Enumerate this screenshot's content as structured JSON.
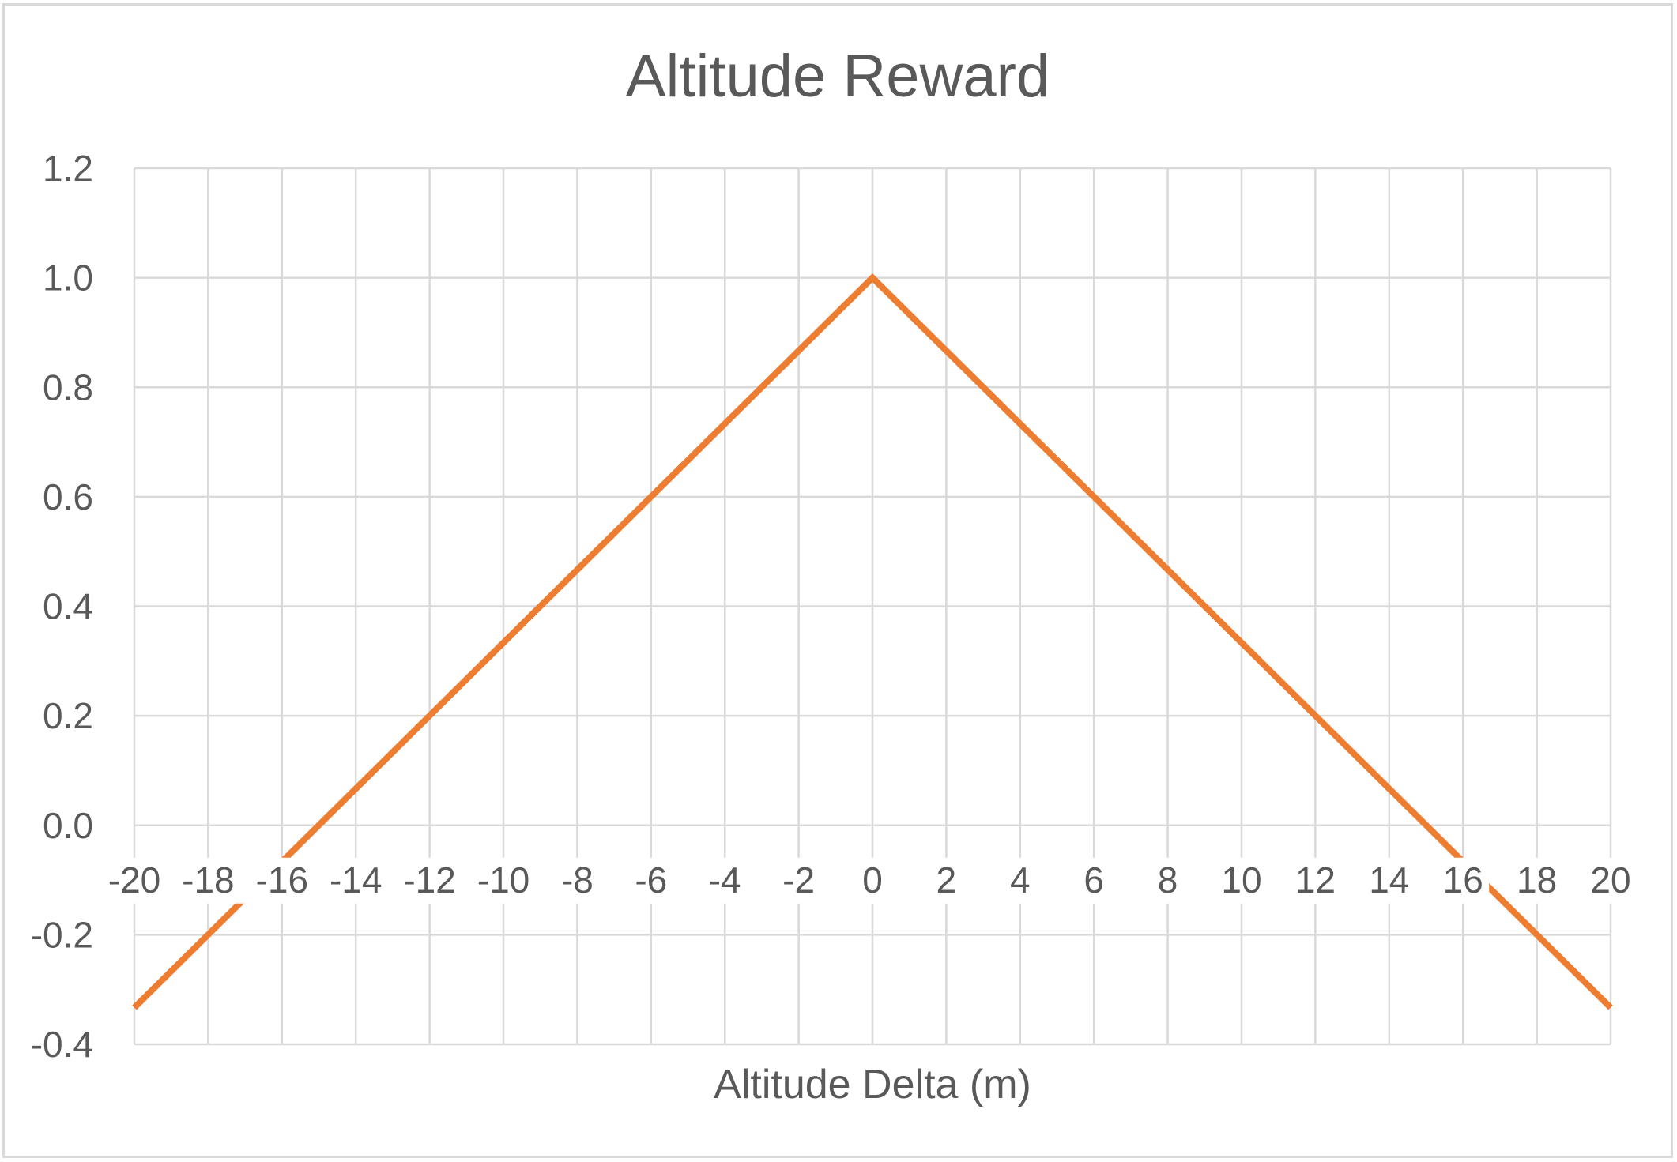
{
  "chart_data": {
    "type": "line",
    "title": "Altitude Reward",
    "xlabel": "Altitude Delta (m)",
    "ylabel": "",
    "xlim": [
      -20,
      20
    ],
    "ylim": [
      -0.4,
      1.2
    ],
    "x_ticks": [
      "-20",
      "-18",
      "-16",
      "-14",
      "-12",
      "-10",
      "-8",
      "-6",
      "-4",
      "-2",
      "0",
      "2",
      "4",
      "6",
      "8",
      "10",
      "12",
      "14",
      "16",
      "18",
      "20"
    ],
    "y_ticks": [
      "1.2",
      "1.0",
      "0.8",
      "0.6",
      "0.4",
      "0.2",
      "0.0",
      "-0.2",
      "-0.4"
    ],
    "grid": true,
    "legend": "none",
    "series": [
      {
        "color": "#ED7D31",
        "x": [
          -20,
          0,
          20
        ],
        "y": [
          -0.333,
          1.0,
          -0.333
        ]
      }
    ]
  }
}
